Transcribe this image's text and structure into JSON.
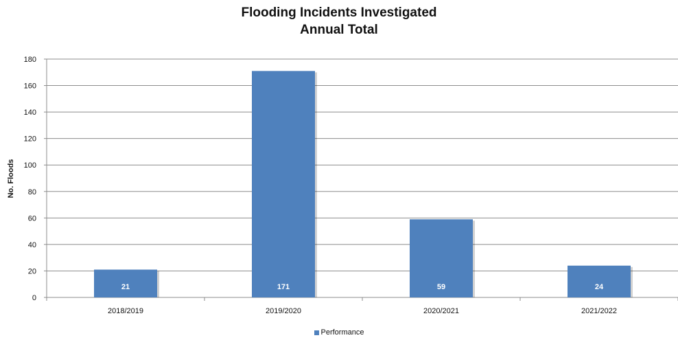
{
  "chart_data": {
    "type": "bar",
    "title": [
      "Flooding Incidents Investigated",
      "Annual Total"
    ],
    "xlabel": "",
    "ylabel": "No. Floods",
    "categories": [
      "2018/2019",
      "2019/2020",
      "2020/2021",
      "2021/2022"
    ],
    "series": [
      {
        "name": "Performance",
        "values": [
          21,
          171,
          59,
          24
        ],
        "color": "#4F81BD"
      }
    ],
    "ylim": [
      0,
      180
    ],
    "yticks": [
      0,
      20,
      40,
      60,
      80,
      100,
      120,
      140,
      160,
      180
    ],
    "grid": true,
    "data_labels": true,
    "legend_position": "bottom"
  }
}
